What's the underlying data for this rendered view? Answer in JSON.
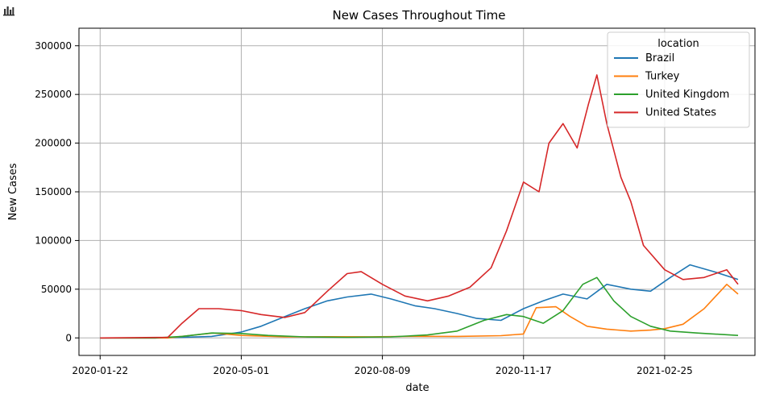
{
  "toolbar": {
    "icon": "bar-chart-icon"
  },
  "chart_data": {
    "type": "line",
    "title": "New Cases Throughout Time",
    "xlabel": "date",
    "ylabel": "New Cases",
    "x_range": [
      "2020-01-07",
      "2021-04-30"
    ],
    "ylim": [
      -18000,
      318000
    ],
    "grid": true,
    "legend": {
      "title": "location",
      "placement": "top-right"
    },
    "x_ticks": [
      "2020-01-22",
      "2020-05-01",
      "2020-08-09",
      "2020-11-17",
      "2021-02-25"
    ],
    "y_ticks": [
      0,
      50000,
      100000,
      150000,
      200000,
      250000,
      300000
    ],
    "y_tick_labels": [
      "0",
      "50000",
      "100000",
      "150000",
      "200000",
      "250000",
      "300000"
    ],
    "series": [
      {
        "name": "Brazil",
        "color": "#1f77b4",
        "points": [
          [
            "2020-01-22",
            0
          ],
          [
            "2020-03-01",
            0
          ],
          [
            "2020-03-20",
            500
          ],
          [
            "2020-04-10",
            1500
          ],
          [
            "2020-05-01",
            6000
          ],
          [
            "2020-05-15",
            12000
          ],
          [
            "2020-06-01",
            22000
          ],
          [
            "2020-06-15",
            30000
          ],
          [
            "2020-07-01",
            38000
          ],
          [
            "2020-07-15",
            42000
          ],
          [
            "2020-08-01",
            45000
          ],
          [
            "2020-08-15",
            40000
          ],
          [
            "2020-09-01",
            33000
          ],
          [
            "2020-09-15",
            30000
          ],
          [
            "2020-10-01",
            25000
          ],
          [
            "2020-10-15",
            20000
          ],
          [
            "2020-11-01",
            18000
          ],
          [
            "2020-11-17",
            30000
          ],
          [
            "2020-12-01",
            38000
          ],
          [
            "2020-12-15",
            45000
          ],
          [
            "2021-01-01",
            40000
          ],
          [
            "2021-01-15",
            55000
          ],
          [
            "2021-02-01",
            50000
          ],
          [
            "2021-02-15",
            48000
          ],
          [
            "2021-03-01",
            62000
          ],
          [
            "2021-03-15",
            75000
          ],
          [
            "2021-04-01",
            68000
          ],
          [
            "2021-04-18",
            60000
          ]
        ]
      },
      {
        "name": "Turkey",
        "color": "#ff7f0e",
        "points": [
          [
            "2020-01-22",
            0
          ],
          [
            "2020-03-10",
            0
          ],
          [
            "2020-04-11",
            5000
          ],
          [
            "2020-05-01",
            2500
          ],
          [
            "2020-06-01",
            1000
          ],
          [
            "2020-07-01",
            1200
          ],
          [
            "2020-08-01",
            1100
          ],
          [
            "2020-09-01",
            1600
          ],
          [
            "2020-10-01",
            1500
          ],
          [
            "2020-11-01",
            2300
          ],
          [
            "2020-11-17",
            4000
          ],
          [
            "2020-11-26",
            31000
          ],
          [
            "2020-12-10",
            32000
          ],
          [
            "2020-12-20",
            22000
          ],
          [
            "2021-01-01",
            12000
          ],
          [
            "2021-01-15",
            9000
          ],
          [
            "2021-02-01",
            7000
          ],
          [
            "2021-02-15",
            8000
          ],
          [
            "2021-02-25",
            9500
          ],
          [
            "2021-03-10",
            14000
          ],
          [
            "2021-03-25",
            30000
          ],
          [
            "2021-04-10",
            55000
          ],
          [
            "2021-04-18",
            45000
          ]
        ]
      },
      {
        "name": "United Kingdom",
        "color": "#2ca02c",
        "points": [
          [
            "2020-01-22",
            0
          ],
          [
            "2020-03-01",
            0
          ],
          [
            "2020-03-20",
            1500
          ],
          [
            "2020-04-10",
            5000
          ],
          [
            "2020-05-01",
            4500
          ],
          [
            "2020-05-20",
            2500
          ],
          [
            "2020-06-15",
            1000
          ],
          [
            "2020-07-15",
            600
          ],
          [
            "2020-08-15",
            1000
          ],
          [
            "2020-09-10",
            3000
          ],
          [
            "2020-10-01",
            7000
          ],
          [
            "2020-10-20",
            18000
          ],
          [
            "2020-11-05",
            24000
          ],
          [
            "2020-11-17",
            22000
          ],
          [
            "2020-12-01",
            15000
          ],
          [
            "2020-12-15",
            28000
          ],
          [
            "2020-12-29",
            55000
          ],
          [
            "2021-01-08",
            62000
          ],
          [
            "2021-01-20",
            38000
          ],
          [
            "2021-02-01",
            22000
          ],
          [
            "2021-02-15",
            12000
          ],
          [
            "2021-03-01",
            7000
          ],
          [
            "2021-03-20",
            5000
          ],
          [
            "2021-04-18",
            2500
          ]
        ]
      },
      {
        "name": "United States",
        "color": "#d62728",
        "points": [
          [
            "2020-01-22",
            0
          ],
          [
            "2020-03-10",
            500
          ],
          [
            "2020-03-20",
            15000
          ],
          [
            "2020-04-01",
            30000
          ],
          [
            "2020-04-15",
            30000
          ],
          [
            "2020-05-01",
            28000
          ],
          [
            "2020-05-15",
            24000
          ],
          [
            "2020-06-01",
            21000
          ],
          [
            "2020-06-15",
            26000
          ],
          [
            "2020-07-01",
            48000
          ],
          [
            "2020-07-15",
            66000
          ],
          [
            "2020-07-25",
            68000
          ],
          [
            "2020-08-09",
            55000
          ],
          [
            "2020-08-25",
            43000
          ],
          [
            "2020-09-10",
            38000
          ],
          [
            "2020-09-25",
            43000
          ],
          [
            "2020-10-10",
            52000
          ],
          [
            "2020-10-25",
            72000
          ],
          [
            "2020-11-05",
            110000
          ],
          [
            "2020-11-17",
            160000
          ],
          [
            "2020-11-28",
            150000
          ],
          [
            "2020-12-05",
            200000
          ],
          [
            "2020-12-15",
            220000
          ],
          [
            "2020-12-25",
            195000
          ],
          [
            "2021-01-02",
            240000
          ],
          [
            "2021-01-08",
            270000
          ],
          [
            "2021-01-15",
            220000
          ],
          [
            "2021-01-25",
            165000
          ],
          [
            "2021-02-01",
            140000
          ],
          [
            "2021-02-10",
            95000
          ],
          [
            "2021-02-25",
            70000
          ],
          [
            "2021-03-10",
            60000
          ],
          [
            "2021-03-25",
            62000
          ],
          [
            "2021-04-10",
            70000
          ],
          [
            "2021-04-18",
            55000
          ]
        ]
      }
    ]
  }
}
